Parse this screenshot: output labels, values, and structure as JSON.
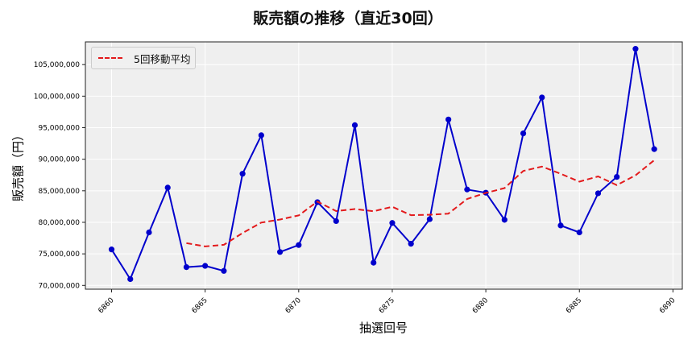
{
  "chart_data": {
    "type": "line",
    "title": "販売額の推移（直近30回）",
    "xlabel": "抽選回号",
    "ylabel": "販売額（円）",
    "x": [
      6860,
      6861,
      6862,
      6863,
      6864,
      6865,
      6866,
      6867,
      6868,
      6869,
      6870,
      6871,
      6872,
      6873,
      6874,
      6875,
      6876,
      6877,
      6878,
      6879,
      6880,
      6881,
      6882,
      6883,
      6884,
      6885,
      6886,
      6887,
      6888,
      6889
    ],
    "series": [
      {
        "name": "販売額",
        "color": "#0000cc",
        "style": "solid",
        "marker": "circle",
        "values": [
          75700000,
          71000000,
          78400000,
          85500000,
          72900000,
          73100000,
          72300000,
          87700000,
          93800000,
          75300000,
          76400000,
          83200000,
          80200000,
          95400000,
          73600000,
          79900000,
          76600000,
          80500000,
          96300000,
          85200000,
          84700000,
          80400000,
          94100000,
          99800000,
          79500000,
          78400000,
          84600000,
          87200000,
          107500000,
          91600000
        ]
      },
      {
        "name": "5回移動平均",
        "color": "#e31a1c",
        "style": "dashed",
        "marker": "none",
        "values": [
          null,
          null,
          null,
          null,
          76700000,
          76180000,
          76440000,
          78300000,
          79960000,
          80440000,
          81100000,
          83280000,
          81780000,
          82100000,
          81760000,
          82460000,
          81140000,
          81200000,
          81380000,
          83700000,
          84660000,
          85420000,
          88140000,
          88840000,
          87700000,
          86440000,
          87280000,
          85900000,
          87440000,
          89860000
        ]
      }
    ],
    "x_ticks": [
      6860,
      6865,
      6870,
      6875,
      6880,
      6885,
      6890
    ],
    "x_tick_labels": [
      "6860",
      "6865",
      "6870",
      "6875",
      "6880",
      "6885",
      "6890"
    ],
    "y_ticks": [
      70000000,
      75000000,
      80000000,
      85000000,
      90000000,
      95000000,
      100000000,
      105000000
    ],
    "y_tick_labels": [
      "70,000,000",
      "75,000,000",
      "80,000,000",
      "85,000,000",
      "90,000,000",
      "95,000,000",
      "100,000,000",
      "105,000,000"
    ],
    "xlim": [
      6858.6,
      6890.5
    ],
    "ylim": [
      69400000,
      108600000
    ],
    "grid": true,
    "legend": {
      "position": "upper left",
      "entries": [
        "5回移動平均"
      ]
    }
  },
  "legend": {
    "label": "5回移動平均"
  }
}
